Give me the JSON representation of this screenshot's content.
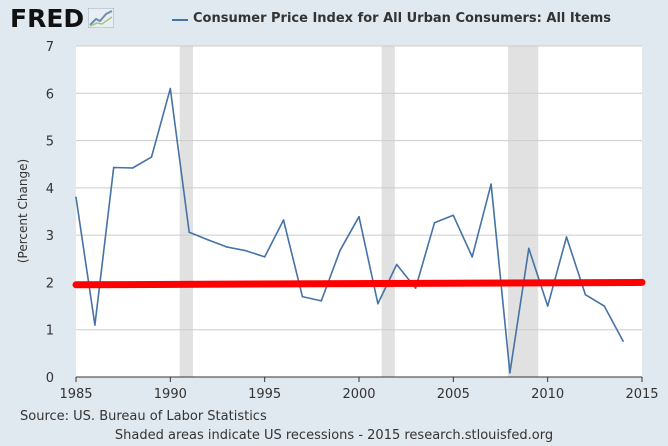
{
  "brand": {
    "logo_text": "FRED",
    "logo_icon": "chart-trend-icon"
  },
  "legend": {
    "label": "Consumer Price Index for All Urban Consumers: All Items",
    "color": "#4572a7"
  },
  "source": "Source: US. Bureau of Labor Statistics",
  "footer": "Shaded areas indicate US recessions - 2015 research.stlouisfed.org",
  "colors": {
    "series": "#4572a7",
    "recession": "#e1e1e1",
    "trend": "#ff0000",
    "background": "#e1e9f0",
    "plot": "#ffffff",
    "grid": "#cccccc"
  },
  "chart_data": {
    "type": "line",
    "title": "",
    "xlabel": "",
    "ylabel": "(Percent Change)",
    "xlim": [
      1985,
      2015
    ],
    "ylim": [
      0,
      7
    ],
    "x_ticks": [
      1985,
      1990,
      1995,
      2000,
      2005,
      2010,
      2015
    ],
    "y_ticks": [
      0,
      1,
      2,
      3,
      4,
      5,
      6,
      7
    ],
    "grid": true,
    "legend_position": "top",
    "recessions": [
      [
        1990.5,
        1991.2
      ],
      [
        2001.2,
        2001.9
      ],
      [
        2007.9,
        2009.5
      ]
    ],
    "series": [
      {
        "name": "Consumer Price Index for All Urban Consumers: All Items",
        "x": [
          1985,
          1986,
          1987,
          1988,
          1989,
          1990,
          1991,
          1992,
          1993,
          1994,
          1995,
          1996,
          1997,
          1998,
          1999,
          2000,
          2001,
          2002,
          2003,
          2004,
          2005,
          2006,
          2007,
          2008,
          2009,
          2010,
          2011,
          2012,
          2013,
          2014
        ],
        "y": [
          3.8,
          1.1,
          4.43,
          4.42,
          4.65,
          6.1,
          3.06,
          2.9,
          2.75,
          2.67,
          2.54,
          3.32,
          1.7,
          1.61,
          2.68,
          3.39,
          1.55,
          2.38,
          1.88,
          3.26,
          3.42,
          2.54,
          4.08,
          0.09,
          2.72,
          1.5,
          2.96,
          1.74,
          1.5,
          0.76
        ]
      }
    ],
    "overlay_line": {
      "x": [
        1985,
        2015
      ],
      "y": [
        1.95,
        2.0
      ]
    }
  }
}
